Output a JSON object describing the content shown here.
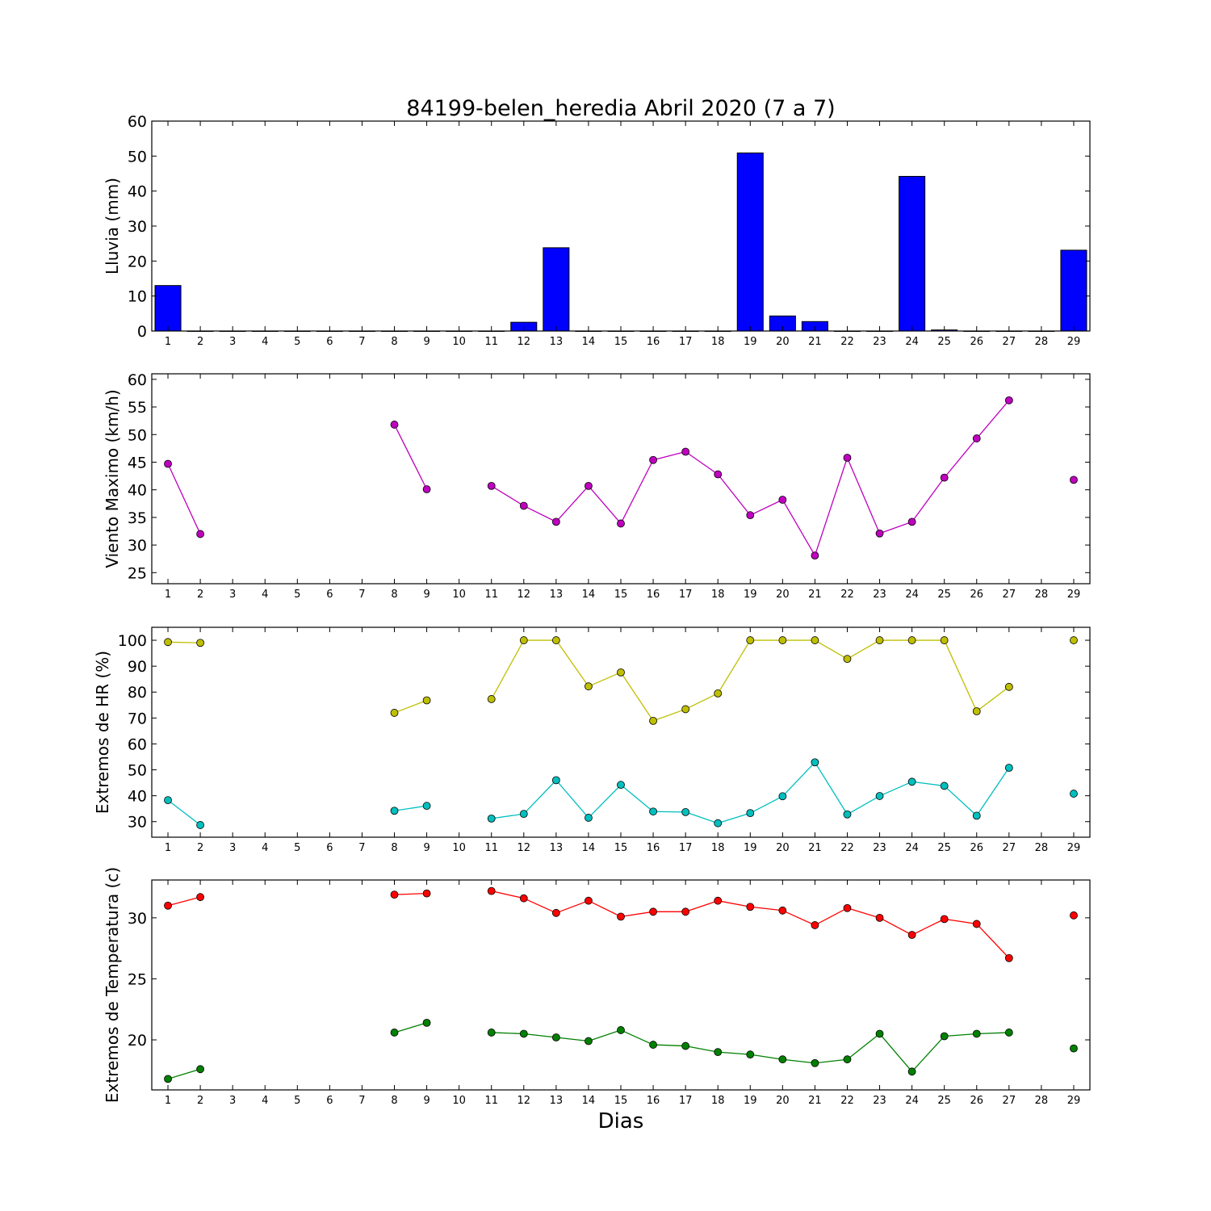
{
  "figure": {
    "title": "84199-belen_heredia Abril 2020  (7 a 7)",
    "xlabel": "Dias"
  },
  "colors": {
    "rain": "#0000ff",
    "wind": "#bf00bf",
    "hr_max": "#bfbf00",
    "hr_min": "#00bfbf",
    "temp_max": "#ff0000",
    "temp_min": "#008000"
  },
  "chart_data": [
    {
      "id": "rain",
      "type": "bar",
      "ylabel": "Lluvia (mm)",
      "ylim": [
        0,
        60
      ],
      "yticks": [
        0,
        10,
        20,
        30,
        40,
        50,
        60
      ],
      "categories": [
        1,
        2,
        3,
        4,
        5,
        6,
        7,
        8,
        9,
        10,
        11,
        12,
        13,
        14,
        15,
        16,
        17,
        18,
        19,
        20,
        21,
        22,
        23,
        24,
        25,
        26,
        27,
        28,
        29
      ],
      "series": [
        {
          "color_key": "rain",
          "values": [
            13.0,
            0,
            0,
            0,
            0,
            0,
            0,
            0,
            0,
            0,
            0,
            2.5,
            23.8,
            0,
            0,
            0,
            0,
            0,
            50.9,
            4.3,
            2.7,
            0,
            0,
            44.2,
            0.3,
            0,
            0,
            0,
            23.1
          ]
        }
      ]
    },
    {
      "id": "wind",
      "type": "line",
      "ylabel": "Viento Maximo (km/h)",
      "ylim": [
        23,
        61
      ],
      "yticks": [
        25,
        30,
        35,
        40,
        45,
        50,
        55,
        60
      ],
      "x": [
        1,
        2,
        3,
        4,
        5,
        6,
        7,
        8,
        9,
        10,
        11,
        12,
        13,
        14,
        15,
        16,
        17,
        18,
        19,
        20,
        21,
        22,
        23,
        24,
        25,
        26,
        27,
        28,
        29
      ],
      "series": [
        {
          "color_key": "wind",
          "values": [
            44.7,
            32.0,
            null,
            null,
            null,
            null,
            null,
            51.8,
            40.1,
            null,
            40.7,
            37.1,
            34.2,
            40.7,
            33.9,
            45.4,
            46.9,
            42.8,
            35.4,
            38.2,
            28.1,
            45.8,
            32.1,
            34.2,
            42.2,
            49.3,
            56.2,
            null,
            41.8
          ]
        }
      ]
    },
    {
      "id": "hr",
      "type": "line",
      "ylabel": "Extremos de HR (%)",
      "ylim": [
        24,
        105
      ],
      "yticks": [
        30,
        40,
        50,
        60,
        70,
        80,
        90,
        100
      ],
      "x": [
        1,
        2,
        3,
        4,
        5,
        6,
        7,
        8,
        9,
        10,
        11,
        12,
        13,
        14,
        15,
        16,
        17,
        18,
        19,
        20,
        21,
        22,
        23,
        24,
        25,
        26,
        27,
        28,
        29
      ],
      "series": [
        {
          "color_key": "hr_max",
          "values": [
            99.3,
            99.0,
            null,
            null,
            null,
            null,
            null,
            72.0,
            76.8,
            null,
            77.3,
            100,
            100,
            82.2,
            87.6,
            68.9,
            73.4,
            79.5,
            100,
            100,
            100,
            92.8,
            100,
            100,
            100,
            72.6,
            82.0,
            null,
            100
          ]
        },
        {
          "color_key": "hr_min",
          "values": [
            38.3,
            28.7,
            null,
            null,
            null,
            null,
            null,
            34.2,
            36.1,
            null,
            31.2,
            33.0,
            46.0,
            31.5,
            44.2,
            33.9,
            33.7,
            29.4,
            33.3,
            39.8,
            52.9,
            32.8,
            39.9,
            45.4,
            43.8,
            32.3,
            50.8,
            null,
            40.8
          ]
        }
      ]
    },
    {
      "id": "temp",
      "type": "line",
      "ylabel": "Extremos de Temperatura (c)",
      "ylim": [
        15.9,
        33.1
      ],
      "yticks": [
        20,
        25,
        30
      ],
      "x": [
        1,
        2,
        3,
        4,
        5,
        6,
        7,
        8,
        9,
        10,
        11,
        12,
        13,
        14,
        15,
        16,
        17,
        18,
        19,
        20,
        21,
        22,
        23,
        24,
        25,
        26,
        27,
        28,
        29
      ],
      "series": [
        {
          "color_key": "temp_max",
          "values": [
            31.0,
            31.7,
            null,
            null,
            null,
            null,
            null,
            31.9,
            32.0,
            null,
            32.2,
            31.6,
            30.4,
            31.4,
            30.1,
            30.5,
            30.5,
            31.4,
            30.9,
            30.6,
            29.4,
            30.8,
            30.0,
            28.6,
            29.9,
            29.5,
            26.7,
            null,
            30.2
          ]
        },
        {
          "color_key": "temp_min",
          "values": [
            16.8,
            17.6,
            null,
            null,
            null,
            null,
            null,
            20.6,
            21.4,
            null,
            20.6,
            20.5,
            20.2,
            19.9,
            20.8,
            19.6,
            19.5,
            19.0,
            18.8,
            18.4,
            18.1,
            18.4,
            20.5,
            17.4,
            20.3,
            20.5,
            20.6,
            null,
            19.3
          ]
        }
      ]
    }
  ]
}
